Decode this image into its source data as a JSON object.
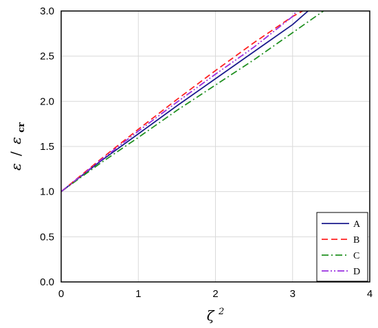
{
  "chart_data": {
    "type": "line",
    "xlabel_symbol": "ζ",
    "xlabel_superscript": "2",
    "ylabel_numerator": "ε",
    "ylabel_separator": "/",
    "ylabel_denominator_symbol": "ε",
    "ylabel_denominator_subscript": "cr",
    "xlim": [
      0,
      4
    ],
    "ylim": [
      0,
      3
    ],
    "xticks": [
      "0",
      "1",
      "2",
      "3",
      "4"
    ],
    "yticks": [
      "0.0",
      "0.5",
      "1.0",
      "1.5",
      "2.0",
      "2.5",
      "3.0"
    ],
    "xtick_values": [
      0,
      1,
      2,
      3,
      4
    ],
    "ytick_values": [
      0,
      0.5,
      1,
      1.5,
      2,
      2.5,
      3
    ],
    "grid": true,
    "legend_position": "bottom-right",
    "series": [
      {
        "name": "A",
        "color": "#1a1a8c",
        "dash": "solid",
        "x": [
          0,
          0.5,
          1,
          1.5,
          2,
          2.5,
          3,
          3.2
        ],
        "y": [
          1.0,
          1.33,
          1.64,
          1.95,
          2.25,
          2.55,
          2.85,
          3.0
        ]
      },
      {
        "name": "B",
        "color": "#ff2020",
        "dash": "dashed",
        "x": [
          0,
          0.5,
          1,
          1.5,
          2,
          2.5,
          3,
          3.13
        ],
        "y": [
          1.0,
          1.35,
          1.69,
          2.02,
          2.34,
          2.65,
          2.94,
          3.0
        ]
      },
      {
        "name": "C",
        "color": "#209020",
        "dash": "dashdot",
        "x": [
          0,
          0.5,
          1,
          1.5,
          2,
          2.5,
          3,
          3.4
        ],
        "y": [
          1.0,
          1.31,
          1.6,
          1.9,
          2.18,
          2.46,
          2.76,
          3.0
        ]
      },
      {
        "name": "D",
        "color": "#9a30e0",
        "dash": "dashdotdot",
        "x": [
          0,
          0.5,
          1,
          1.5,
          2,
          2.5,
          3,
          3.05
        ],
        "y": [
          1.0,
          1.34,
          1.67,
          1.99,
          2.3,
          2.6,
          2.94,
          3.0
        ]
      }
    ]
  }
}
